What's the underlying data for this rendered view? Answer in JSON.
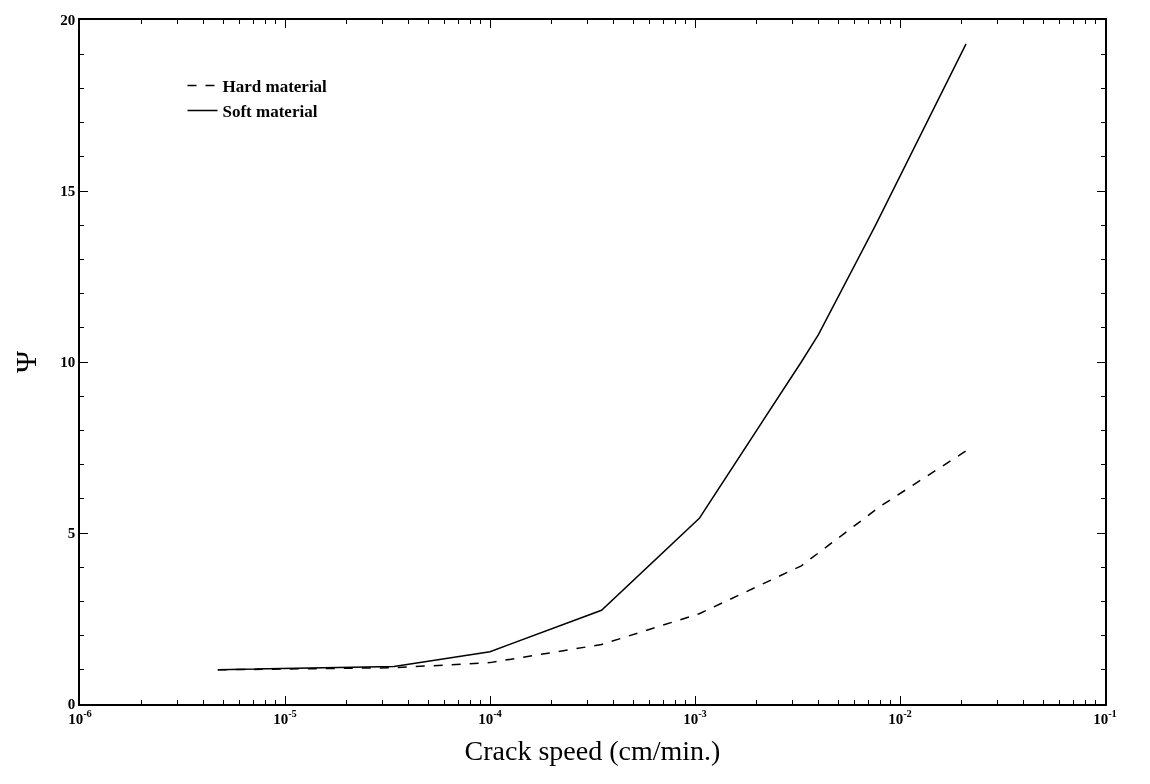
{
  "chart_data": {
    "type": "line",
    "xlabel": "Crack speed (cm/min.)",
    "ylabel": "Ψ",
    "log": "x",
    "xlim": [
      1e-06,
      0.1
    ],
    "xticks": [
      {
        "value": 1e-06,
        "label": "10$^{-6}$"
      },
      {
        "value": 1e-05,
        "label": "10$^{-5}$"
      },
      {
        "value": 0.0001,
        "label": "10$^{-4}$"
      },
      {
        "value": 0.001,
        "label": "10$^{-3}$"
      },
      {
        "value": 0.01,
        "label": "10$^{-2}$"
      },
      {
        "value": 0.1,
        "label": "10$^{-1}$"
      }
    ],
    "ylim": [
      0,
      20
    ],
    "yticks": [
      0,
      5,
      10,
      15,
      20
    ],
    "legend": "top left",
    "series": [
      {
        "name": "Hard material",
        "color": "#000000",
        "line_style": "dashed",
        "x": [
          4.7e-06,
          3.4e-05,
          0.0001,
          0.00035,
          0.00105,
          0.0033,
          0.0081,
          0.021
        ],
        "values": [
          1.0,
          1.06,
          1.21,
          1.74,
          2.64,
          4.04,
          5.8,
          7.4
        ]
      },
      {
        "name": "Soft material",
        "color": "#000000",
        "line_style": "solid",
        "x": [
          4.7e-06,
          3.4e-05,
          0.0001,
          0.00035,
          0.00105,
          0.0033,
          0.004,
          0.0076,
          0.021
        ],
        "values": [
          1.0,
          1.1,
          1.53,
          2.74,
          5.43,
          10.0,
          10.8,
          14.0,
          19.3
        ]
      }
    ]
  }
}
